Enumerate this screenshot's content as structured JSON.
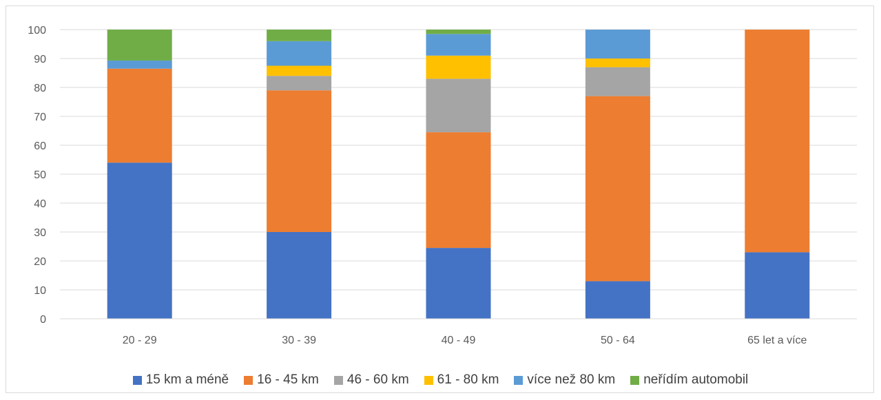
{
  "chart_data": {
    "type": "bar",
    "stacked": true,
    "categories": [
      "20 - 29",
      "30 - 39",
      "40 - 49",
      "50 - 64",
      "65 let a více"
    ],
    "ylim": [
      0,
      100
    ],
    "yticks": [
      "0",
      "10",
      "20",
      "30",
      "40",
      "50",
      "60",
      "70",
      "80",
      "90",
      "100"
    ],
    "grid": true,
    "legend_position": "bottom",
    "series": [
      {
        "name": "15 km a méně",
        "color": "#4472C4",
        "values": [
          54,
          30,
          24.5,
          13,
          23
        ]
      },
      {
        "name": "16 - 45 km",
        "color": "#ED7D31",
        "values": [
          32.5,
          49,
          40,
          64,
          77
        ]
      },
      {
        "name": "46 - 60 km",
        "color": "#A5A5A5",
        "values": [
          0,
          5,
          18.5,
          10,
          0
        ]
      },
      {
        "name": "61 - 80 km",
        "color": "#FFC000",
        "values": [
          0,
          3.5,
          8,
          3,
          0
        ]
      },
      {
        "name": "více než 80 km",
        "color": "#5B9BD5",
        "values": [
          2.8,
          8.5,
          7.5,
          10,
          0
        ]
      },
      {
        "name": "neřídím automobil",
        "color": "#70AD47",
        "values": [
          10.7,
          4,
          1.5,
          0,
          0
        ]
      }
    ]
  }
}
